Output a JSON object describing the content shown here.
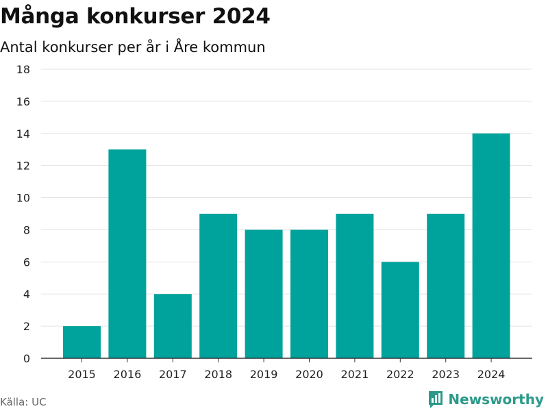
{
  "header": {
    "title": "Många konkurser 2024",
    "subtitle": "Antal konkurser per år i Åre kommun"
  },
  "footer": {
    "source": "Källa: UC",
    "brand": "Newsworthy"
  },
  "colors": {
    "bar": "#00a39b",
    "grid": "#e3e3e3",
    "axis": "#333333",
    "brand": "#2c9a8a"
  },
  "icons": {
    "brand_logo": "bar-chart-speech-bubble-icon"
  },
  "chart_data": {
    "type": "bar",
    "categories": [
      "2015",
      "2016",
      "2017",
      "2018",
      "2019",
      "2020",
      "2021",
      "2022",
      "2023",
      "2024"
    ],
    "values": [
      2,
      13,
      4,
      9,
      8,
      8,
      9,
      6,
      9,
      14
    ],
    "title": "Många konkurser 2024",
    "subtitle": "Antal konkurser per år i Åre kommun",
    "xlabel": "",
    "ylabel": "",
    "ylim": [
      0,
      18
    ],
    "yticks": [
      0,
      2,
      4,
      6,
      8,
      10,
      12,
      14,
      16,
      18
    ],
    "grid": true,
    "legend": "none"
  }
}
